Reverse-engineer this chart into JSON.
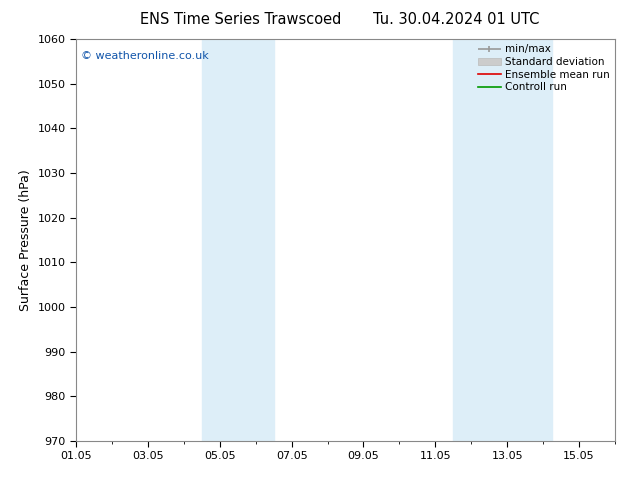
{
  "title_left": "ENS Time Series Trawscoed",
  "title_right": "Tu. 30.04.2024 01 UTC",
  "ylabel": "Surface Pressure (hPa)",
  "ylim": [
    970,
    1060
  ],
  "yticks": [
    970,
    980,
    990,
    1000,
    1010,
    1020,
    1030,
    1040,
    1050,
    1060
  ],
  "xtick_labels": [
    "01.05",
    "03.05",
    "05.05",
    "07.05",
    "09.05",
    "11.05",
    "13.05",
    "15.05"
  ],
  "xtick_positions": [
    0,
    2,
    4,
    6,
    8,
    10,
    12,
    14
  ],
  "xlim": [
    0,
    15
  ],
  "shaded_bands": [
    {
      "x_start": 3.5,
      "x_end": 4.25,
      "color": "#ddeef8"
    },
    {
      "x_start": 4.25,
      "x_end": 5.5,
      "color": "#ddeef8"
    },
    {
      "x_start": 10.5,
      "x_end": 11.5,
      "color": "#ddeef8"
    },
    {
      "x_start": 11.5,
      "x_end": 13.25,
      "color": "#ddeef8"
    }
  ],
  "shade_color": "#ddeef8",
  "watermark": "© weatheronline.co.uk",
  "legend_entries": [
    {
      "label": "min/max",
      "color": "#999999",
      "lw": 1.2
    },
    {
      "label": "Standard deviation",
      "color": "#cccccc",
      "lw": 6
    },
    {
      "label": "Ensemble mean run",
      "color": "#dd0000",
      "lw": 1.2
    },
    {
      "label": "Controll run",
      "color": "#009900",
      "lw": 1.2
    }
  ],
  "bg_color": "#ffffff",
  "spine_color": "#888888",
  "title_fontsize": 10.5,
  "label_fontsize": 9,
  "tick_fontsize": 8,
  "watermark_color": "#1155aa"
}
